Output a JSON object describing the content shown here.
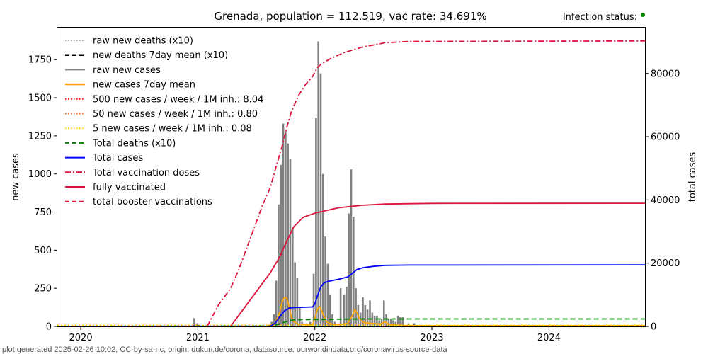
{
  "chart_data": {
    "type": "line",
    "title": "Grenada, population = 112.519, vac rate: 34.691%",
    "status": {
      "label": "Infection status:",
      "color": "#008000"
    },
    "ylabel_left": "new cases",
    "ylabel_right": "total cases",
    "ylim_left": [
      0,
      1960
    ],
    "ylim_right": [
      0,
      94500
    ],
    "xlim": [
      2019.8,
      2024.82
    ],
    "xticks": [
      {
        "value": 2020,
        "label": "2020"
      },
      {
        "value": 2021,
        "label": "2021"
      },
      {
        "value": 2022,
        "label": "2022"
      },
      {
        "value": 2023,
        "label": "2023"
      },
      {
        "value": 2024,
        "label": "2024"
      }
    ],
    "yticks_left": [
      {
        "value": 0,
        "label": "0"
      },
      {
        "value": 250,
        "label": "250"
      },
      {
        "value": 500,
        "label": "500"
      },
      {
        "value": 750,
        "label": "750"
      },
      {
        "value": 1000,
        "label": "1000"
      },
      {
        "value": 1250,
        "label": "1250"
      },
      {
        "value": 1500,
        "label": "1500"
      },
      {
        "value": 1750,
        "label": "1750"
      }
    ],
    "yticks_right": [
      {
        "value": 0,
        "label": "0"
      },
      {
        "value": 20000,
        "label": "20000"
      },
      {
        "value": 40000,
        "label": "40000"
      },
      {
        "value": 60000,
        "label": "60000"
      },
      {
        "value": 80000,
        "label": "80000"
      }
    ],
    "legend": [
      {
        "label": "raw new deaths (x10)",
        "color": "#808080",
        "style": "dotted",
        "width": 1.5
      },
      {
        "label": "new deaths 7day mean (x10)",
        "color": "#000000",
        "style": "dashed",
        "width": 2.5
      },
      {
        "label": "raw new cases",
        "color": "#808080",
        "style": "solid",
        "width": 2
      },
      {
        "label": "new cases 7day mean",
        "color": "#ffa500",
        "style": "solid",
        "width": 2.5
      },
      {
        "label": "500 new cases / week / 1M inh.: 8.04",
        "color": "#ff0000",
        "style": "dotted",
        "width": 2
      },
      {
        "label": "50 new cases / week / 1M inh.: 0.80",
        "color": "#e07020",
        "style": "dotted",
        "width": 2
      },
      {
        "label": "5 new cases / week / 1M inh.: 0.08",
        "color": "#ffd700",
        "style": "dotted",
        "width": 2
      },
      {
        "label": "Total deaths (x10)",
        "color": "#008000",
        "style": "dashed",
        "width": 2
      },
      {
        "label": "Total cases",
        "color": "#0000ff",
        "style": "solid",
        "width": 2
      },
      {
        "label": "Total vaccination doses",
        "color": "#dc143c",
        "style": "dashdot",
        "width": 2
      },
      {
        "label": "fully vaccinated",
        "color": "#dc143c",
        "style": "solid",
        "width": 2
      },
      {
        "label": "total booster vaccinations",
        "color": "#dc143c",
        "style": "dashed",
        "width": 2
      }
    ],
    "series": [
      {
        "name": "raw new cases",
        "axis": "left",
        "kind": "bars",
        "color": "#808080",
        "x": [
          2020.97,
          2020.99,
          2021.01,
          2021.63,
          2021.65,
          2021.67,
          2021.69,
          2021.71,
          2021.73,
          2021.75,
          2021.77,
          2021.79,
          2021.81,
          2021.83,
          2021.85,
          2021.87,
          2021.89,
          2021.93,
          2021.96,
          2021.99,
          2022.01,
          2022.03,
          2022.05,
          2022.07,
          2022.09,
          2022.11,
          2022.13,
          2022.15,
          2022.17,
          2022.22,
          2022.25,
          2022.27,
          2022.29,
          2022.31,
          2022.33,
          2022.35,
          2022.37,
          2022.39,
          2022.41,
          2022.43,
          2022.45,
          2022.47,
          2022.49,
          2022.51,
          2022.53,
          2022.55,
          2022.57,
          2022.59,
          2022.61,
          2022.63,
          2022.65,
          2022.67,
          2022.69,
          2022.71,
          2022.73,
          2022.75,
          2022.8,
          2022.85
        ],
        "values": [
          55,
          20,
          10,
          30,
          80,
          300,
          800,
          1060,
          1330,
          1280,
          1200,
          1100,
          650,
          420,
          320,
          120,
          30,
          20,
          30,
          345,
          1370,
          1870,
          1660,
          1000,
          590,
          410,
          210,
          80,
          30,
          250,
          210,
          260,
          740,
          1030,
          720,
          250,
          140,
          90,
          190,
          140,
          110,
          170,
          90,
          70,
          70,
          40,
          50,
          170,
          80,
          50,
          50,
          40,
          30,
          70,
          60,
          60,
          20,
          20
        ]
      },
      {
        "name": "new cases 7day mean",
        "axis": "left",
        "kind": "line",
        "color": "#ffa500",
        "x": [
          2021.6,
          2021.66,
          2021.7,
          2021.72,
          2021.74,
          2021.76,
          2021.78,
          2021.8,
          2021.82,
          2021.86,
          2021.92,
          2021.98,
          2022.0,
          2022.02,
          2022.04,
          2022.06,
          2022.08,
          2022.1,
          2022.14,
          2022.2,
          2022.28,
          2022.32,
          2022.34,
          2022.36,
          2022.38,
          2022.42,
          2022.48,
          2022.56,
          2022.6,
          2022.64,
          2022.8,
          2024.82
        ],
        "values": [
          5,
          20,
          90,
          160,
          190,
          185,
          130,
          60,
          30,
          15,
          10,
          10,
          50,
          110,
          130,
          100,
          60,
          30,
          15,
          10,
          20,
          70,
          110,
          90,
          50,
          25,
          20,
          15,
          30,
          10,
          5,
          5
        ]
      },
      {
        "name": "Total cases",
        "axis": "right",
        "kind": "line",
        "color": "#0000ff",
        "x": [
          2019.8,
          2021.62,
          2021.66,
          2021.7,
          2021.74,
          2021.78,
          2021.82,
          2021.9,
          2021.98,
          2022.0,
          2022.02,
          2022.05,
          2022.08,
          2022.12,
          2022.2,
          2022.28,
          2022.32,
          2022.36,
          2022.42,
          2022.5,
          2022.6,
          2022.8,
          2024.82
        ],
        "values": [
          0,
          100,
          1000,
          3000,
          4900,
          5800,
          5950,
          6050,
          6150,
          7000,
          9500,
          12500,
          13800,
          14300,
          14900,
          15600,
          16800,
          18000,
          18600,
          19000,
          19300,
          19400,
          19450
        ]
      },
      {
        "name": "Total deaths (x10)",
        "axis": "right",
        "kind": "line",
        "color": "#008000",
        "dash": "7,4",
        "x": [
          2019.8,
          2021.64,
          2021.7,
          2021.76,
          2021.82,
          2022.4,
          2024.82
        ],
        "values": [
          0,
          100,
          800,
          1600,
          2100,
          2350,
          2350
        ]
      },
      {
        "name": "Total vaccination doses",
        "axis": "right",
        "kind": "line",
        "color": "#dc143c",
        "dash": "8,3,2,3",
        "x": [
          2021.08,
          2021.18,
          2021.28,
          2021.35,
          2021.45,
          2021.55,
          2021.62,
          2021.68,
          2021.72,
          2021.76,
          2021.8,
          2021.86,
          2021.92,
          2021.98,
          2022.02,
          2022.06,
          2022.15,
          2022.25,
          2022.4,
          2022.6,
          2022.8,
          2024.82
        ],
        "values": [
          0,
          7000,
          12000,
          18000,
          28000,
          38000,
          44000,
          52000,
          57000,
          63000,
          68000,
          73000,
          76500,
          79000,
          81800,
          83200,
          85000,
          86600,
          88300,
          89700,
          90100,
          90300
        ]
      },
      {
        "name": "fully vaccinated",
        "axis": "right",
        "kind": "line",
        "color": "#dc143c",
        "x": [
          2021.28,
          2021.38,
          2021.48,
          2021.55,
          2021.62,
          2021.7,
          2021.76,
          2021.82,
          2021.9,
          2022.0,
          2022.08,
          2022.2,
          2022.4,
          2022.6,
          2023.0,
          2024.82
        ],
        "values": [
          0,
          5000,
          10000,
          13500,
          17000,
          22000,
          27000,
          31500,
          34500,
          35800,
          36500,
          37500,
          38300,
          38700,
          38900,
          38950
        ]
      },
      {
        "name": "total booster vaccinations",
        "axis": "right",
        "kind": "line",
        "color": "#dc143c",
        "dash": "6,4",
        "x": [
          2019.8,
          2024.82
        ],
        "values": [
          0,
          0
        ]
      },
      {
        "name": "500 new cases / week / 1M inh.: 8.04",
        "axis": "left",
        "kind": "hline",
        "color": "#ff0000",
        "dash": "2,3",
        "x": [
          2019.8,
          2024.82
        ],
        "values": [
          8.04,
          8.04
        ]
      },
      {
        "name": "50 new cases / week / 1M inh.: 0.80",
        "axis": "left",
        "kind": "hline",
        "color": "#e07020",
        "dash": "2,3",
        "x": [
          2019.8,
          2024.82
        ],
        "values": [
          0.8,
          0.8
        ]
      },
      {
        "name": "5 new cases / week / 1M inh.: 0.08",
        "axis": "left",
        "kind": "hline",
        "color": "#ffd700",
        "dash": "2,3",
        "x": [
          2019.8,
          2024.82
        ],
        "values": [
          0.08,
          0.08
        ]
      }
    ],
    "grid": false,
    "legend_position": "top-left"
  },
  "footer": "plot generated 2025-02-26 10:02, CC-by-sa-nc, origin: dukun.de/corona, datasource: ourworldindata.org/coronavirus-source-data"
}
